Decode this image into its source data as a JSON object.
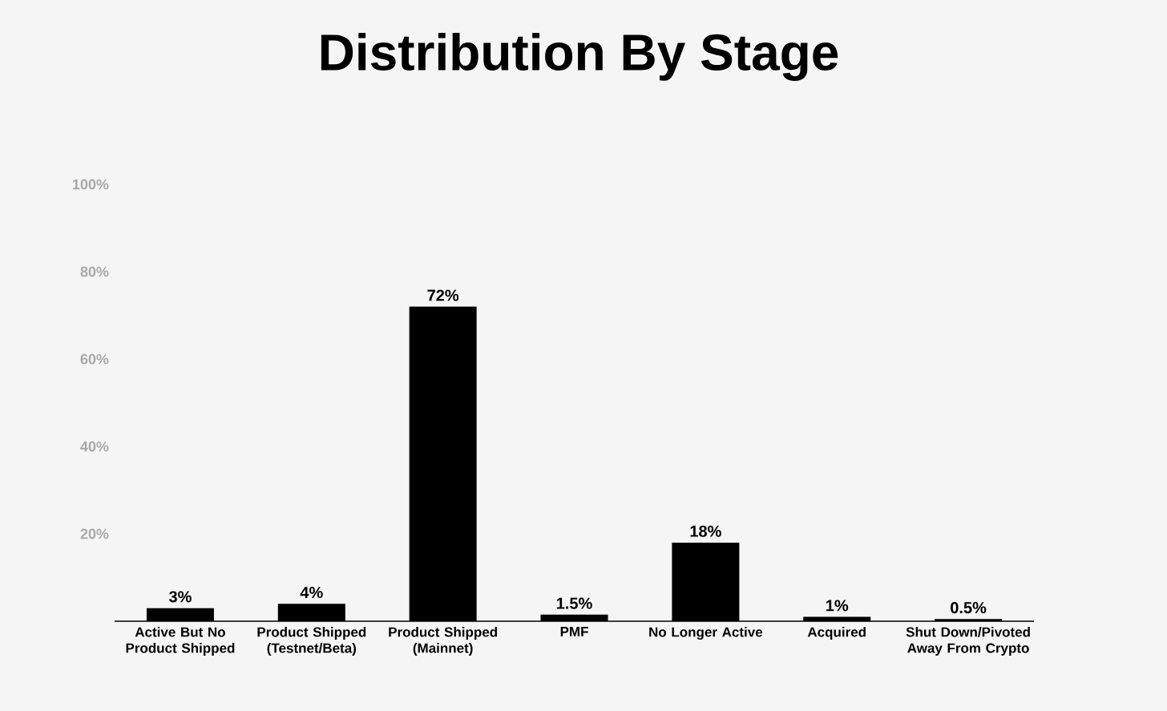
{
  "chart_data": {
    "type": "bar",
    "title": "Distribution By Stage",
    "categories": [
      "Active But No Product Shipped",
      "Product Shipped (Testnet/Beta)",
      "Product Shipped (Mainnet)",
      "PMF",
      "No Longer Active",
      "Acquired",
      "Shut Down/Pivoted Away From Crypto"
    ],
    "values": [
      3,
      4,
      72,
      1.5,
      18,
      1,
      0.5
    ],
    "value_labels": [
      "3%",
      "4%",
      "72%",
      "1.5%",
      "18%",
      "1%",
      "0.5%"
    ],
    "color": "#000000",
    "ylim": [
      0,
      100
    ],
    "yticks": [
      {
        "value": 20,
        "label": "20%"
      },
      {
        "value": 40,
        "label": "40%"
      },
      {
        "value": 60,
        "label": "60%"
      },
      {
        "value": 80,
        "label": "80%"
      },
      {
        "value": 100,
        "label": "100%"
      }
    ]
  }
}
